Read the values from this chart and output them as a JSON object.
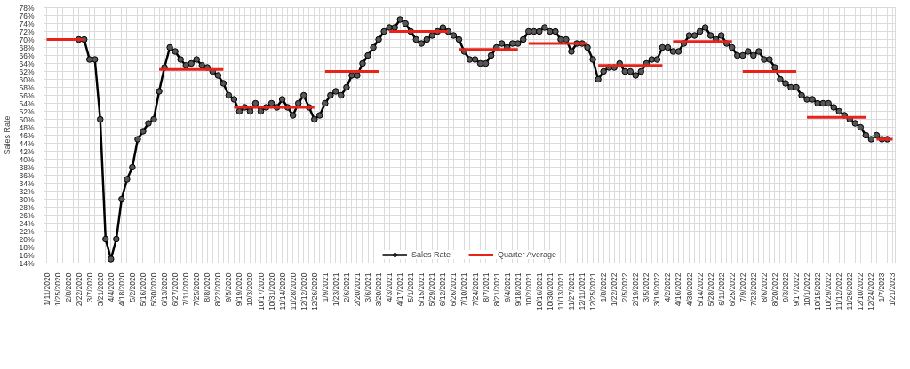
{
  "chart_data": {
    "type": "line",
    "ylabel": "Sales Rate",
    "categories": [
      "1/11/2020",
      null,
      "1/25/2020",
      null,
      "2/8/2020",
      null,
      "2/22/2020",
      null,
      "3/7/2020",
      null,
      "3/21/2020",
      null,
      "4/4/2020",
      null,
      "4/18/2020",
      null,
      "5/2/2020",
      null,
      "5/16/2020",
      null,
      "5/30/2020",
      null,
      "6/13/2020",
      null,
      "6/27/2020",
      null,
      "7/11/2020",
      null,
      "7/25/2020",
      null,
      "8/8/2020",
      null,
      "8/22/2020",
      null,
      "9/5/2020",
      null,
      "9/19/2020",
      null,
      "10/3/2020",
      null,
      "10/17/2020",
      null,
      "10/31/2020",
      null,
      "11/14/2020",
      null,
      "11/28/2020",
      null,
      "12/12/2020",
      null,
      "12/26/2020",
      null,
      "1/9/2021",
      null,
      "1/23/2021",
      null,
      "2/6/2021",
      null,
      "2/20/2021",
      null,
      "3/6/2021",
      null,
      "3/20/2021",
      null,
      "4/3/2021",
      null,
      "4/17/2021",
      null,
      "5/1/2021",
      null,
      "5/15/2021",
      null,
      "5/29/2021",
      null,
      "6/12/2021",
      null,
      "6/26/2021",
      null,
      "7/10/2021",
      null,
      "7/24/2021",
      null,
      "8/7/2021",
      null,
      "8/21/2021",
      null,
      "9/4/2021",
      null,
      "9/18/2021",
      null,
      "10/2/2021",
      null,
      "10/16/2021",
      null,
      "10/30/2021",
      null,
      "11/13/2021",
      null,
      "11/27/2021",
      null,
      "12/11/2021",
      null,
      "12/25/2021",
      null,
      "1/8/2022",
      null,
      "1/22/2022",
      null,
      "2/5/2022",
      null,
      "2/19/2022",
      null,
      "3/5/2022",
      null,
      "3/19/2022",
      null,
      "4/2/2022",
      null,
      "4/16/2022",
      null,
      "4/30/2022",
      null,
      "5/14/2022",
      null,
      "5/28/2022",
      null,
      "6/11/2022",
      null,
      "6/25/2022",
      null,
      "7/9/2022",
      null,
      "7/23/2022",
      null,
      "8/6/2022",
      null,
      "8/20/2022",
      null,
      "9/3/2022",
      null,
      "9/17/2022",
      null,
      "10/1/2022",
      null,
      "10/15/2022",
      null,
      "10/29/2022",
      null,
      "11/12/2022",
      null,
      "11/26/2022",
      null,
      "12/10/2022",
      null,
      "12/24/2022",
      null,
      "1/7/2023",
      null,
      "1/21/2023"
    ],
    "series": [
      {
        "name": "Sales Rate",
        "color": "#000000",
        "marker": "circle",
        "values": [
          null,
          null,
          null,
          null,
          null,
          null,
          70,
          70,
          65,
          65,
          50,
          20,
          15,
          20,
          30,
          35,
          38,
          45,
          47,
          49,
          50,
          57,
          63,
          68,
          67,
          65,
          63.5,
          64,
          65,
          63.5,
          63,
          62,
          61,
          59,
          56,
          55,
          52,
          53,
          52,
          54,
          52,
          53,
          54,
          53,
          55,
          53,
          51,
          54,
          56,
          53,
          50,
          51,
          54,
          56,
          57,
          56,
          58,
          61,
          61,
          64,
          66,
          68,
          70,
          72,
          73,
          73,
          75,
          74,
          72,
          70,
          69,
          70,
          71,
          72,
          73,
          72,
          71,
          70,
          67,
          65,
          65,
          64,
          64,
          66,
          68,
          69,
          68,
          69,
          69,
          70,
          72,
          72,
          72,
          73,
          72,
          72,
          70,
          70,
          67,
          69,
          69,
          68,
          65,
          60,
          62,
          63,
          63,
          64,
          62,
          62,
          61,
          62,
          64,
          65,
          65,
          68,
          68,
          67,
          67,
          69,
          71,
          71,
          72,
          73,
          71,
          70,
          71,
          69,
          68,
          66,
          66,
          67,
          66,
          67,
          65,
          65,
          63,
          60,
          59,
          58,
          58,
          56,
          55,
          55,
          54,
          54,
          54,
          53,
          52,
          51,
          50,
          49,
          48,
          46,
          45,
          46,
          45,
          45,
          null
        ]
      },
      {
        "name": "Quarter Average",
        "color": "#e8231a",
        "marker": "none",
        "values": [
          70,
          70,
          70,
          70,
          70,
          70,
          70,
          70,
          null,
          null,
          null,
          null,
          null,
          null,
          null,
          null,
          null,
          null,
          null,
          null,
          null,
          62.5,
          62.5,
          62.5,
          62.5,
          62.5,
          62.5,
          62.5,
          62.5,
          62.5,
          62.5,
          62.5,
          62.5,
          62.5,
          null,
          53,
          53,
          53,
          53,
          53,
          53,
          53,
          53,
          53,
          53,
          53,
          53,
          53,
          53,
          53,
          53,
          null,
          62,
          62,
          62,
          62,
          62,
          62,
          62,
          62,
          62,
          62,
          62,
          null,
          72,
          72,
          72,
          72,
          72,
          72,
          72,
          72,
          72,
          72,
          72,
          72,
          null,
          67.5,
          67.5,
          67.5,
          67.5,
          67.5,
          67.5,
          67.5,
          67.5,
          67.5,
          67.5,
          67.5,
          67.5,
          null,
          69,
          69,
          69,
          69,
          69,
          69,
          69,
          69,
          69,
          69,
          69,
          69,
          null,
          63.5,
          63.5,
          63.5,
          63.5,
          63.5,
          63.5,
          63.5,
          63.5,
          63.5,
          63.5,
          63.5,
          63.5,
          63.5,
          null,
          69.5,
          69.5,
          69.5,
          69.5,
          69.5,
          69.5,
          69.5,
          69.5,
          69.5,
          69.5,
          69.5,
          69.5,
          null,
          62,
          62,
          62,
          62,
          62,
          62,
          62,
          62,
          62,
          62,
          62,
          null,
          50.5,
          50.5,
          50.5,
          50.5,
          50.5,
          50.5,
          50.5,
          50.5,
          50.5,
          50.5,
          50.5,
          50.5,
          null,
          45,
          45,
          45,
          45
        ]
      }
    ],
    "ylim": [
      14,
      78
    ],
    "yticks": [
      {
        "value": 14,
        "label": "14%"
      },
      {
        "value": 16,
        "label": "16%"
      },
      {
        "value": 18,
        "label": "18%"
      },
      {
        "value": 20,
        "label": "20%"
      },
      {
        "value": 22,
        "label": "22%"
      },
      {
        "value": 24,
        "label": "24%"
      },
      {
        "value": 26,
        "label": "26%"
      },
      {
        "value": 28,
        "label": "28%"
      },
      {
        "value": 30,
        "label": "30%"
      },
      {
        "value": 32,
        "label": "32%"
      },
      {
        "value": 34,
        "label": "34%"
      },
      {
        "value": 36,
        "label": "36%"
      },
      {
        "value": 38,
        "label": "38%"
      },
      {
        "value": 40,
        "label": "40%"
      },
      {
        "value": 42,
        "label": "42%"
      },
      {
        "value": 44,
        "label": "44%"
      },
      {
        "value": 46,
        "label": "46%"
      },
      {
        "value": 48,
        "label": "48%"
      },
      {
        "value": 50,
        "label": "50%"
      },
      {
        "value": 52,
        "label": "52%"
      },
      {
        "value": 54,
        "label": "54%"
      },
      {
        "value": 56,
        "label": "56%"
      },
      {
        "value": 58,
        "label": "58%"
      },
      {
        "value": 60,
        "label": "60%"
      },
      {
        "value": 62,
        "label": "62%"
      },
      {
        "value": 64,
        "label": "64%"
      },
      {
        "value": 66,
        "label": "66%"
      },
      {
        "value": 68,
        "label": "68%"
      },
      {
        "value": 70,
        "label": "70%"
      },
      {
        "value": 72,
        "label": "72%"
      },
      {
        "value": 74,
        "label": "74%"
      },
      {
        "value": 76,
        "label": "76%"
      },
      {
        "value": 78,
        "label": "78%"
      }
    ],
    "grid": true,
    "legend": "bottom"
  }
}
